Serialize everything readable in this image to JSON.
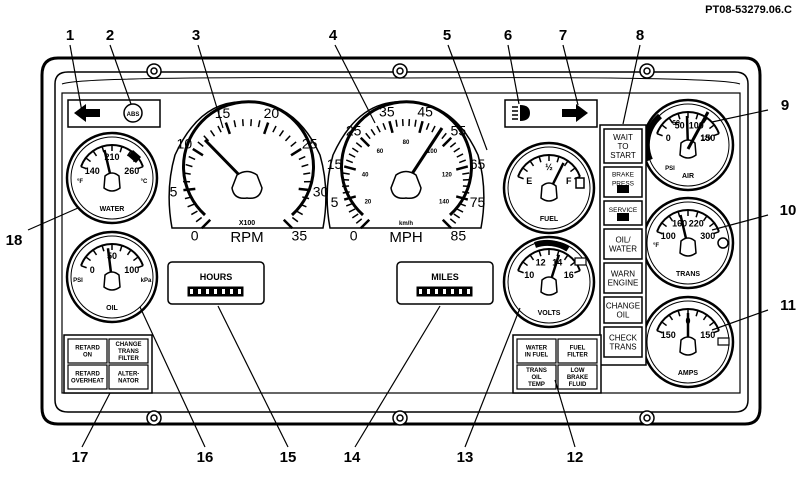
{
  "doc_id": "PT08-53279.06.C",
  "callouts": [
    "1",
    "2",
    "3",
    "4",
    "5",
    "6",
    "7",
    "8",
    "9",
    "10",
    "11",
    "12",
    "13",
    "14",
    "15",
    "16",
    "17",
    "18"
  ],
  "icons": {
    "left_turn": "arrow-left",
    "right_turn": "arrow-right",
    "high_beam": "headlamp"
  },
  "abs": "ABS",
  "tach": {
    "ticks": [
      "0",
      "5",
      "10",
      "15",
      "20",
      "25",
      "30",
      "35"
    ],
    "mult": "X100",
    "unit": "RPM"
  },
  "speedo": {
    "ticks": [
      "0",
      "5",
      "15",
      "25",
      "35",
      "45",
      "55",
      "65",
      "75",
      "85"
    ],
    "inner": [
      "20",
      "40",
      "60",
      "80",
      "100",
      "120",
      "140"
    ],
    "mult": "km/h",
    "unit": "MPH"
  },
  "water": {
    "ticks": [
      "140",
      "210",
      "260"
    ],
    "unit_left": "°F",
    "unit_right": "°C",
    "label": "WATER"
  },
  "oil": {
    "ticks": [
      "0",
      "50",
      "100"
    ],
    "unit_left": "PSI",
    "unit_right": "kPa",
    "label": "OIL"
  },
  "fuel": {
    "ticks": [
      "E",
      "½",
      "F"
    ],
    "label": "FUEL"
  },
  "volts": {
    "ticks": [
      "10",
      "12",
      "14",
      "16"
    ],
    "label": "VOLTS"
  },
  "air": {
    "ticks": [
      "0",
      "50",
      "100",
      "150",
      "60",
      "120"
    ],
    "unit": "PSI",
    "label": "AIR"
  },
  "trans": {
    "ticks": [
      "100",
      "160",
      "220",
      "300"
    ],
    "unit": "°F",
    "label": "TRANS"
  },
  "amps": {
    "ticks": [
      "150",
      "0",
      "150"
    ],
    "label": "AMPS"
  },
  "hours": {
    "label": "HOURS"
  },
  "miles": {
    "label": "MILES"
  },
  "warn_stack": [
    [
      "WAIT",
      "TO",
      "START"
    ],
    [
      "BRAKE",
      "PRESS"
    ],
    [
      "SERVICE"
    ],
    [
      "OIL/",
      "WATER"
    ],
    [
      "WARN",
      "ENGINE"
    ],
    [
      "CHANGE",
      "OIL"
    ],
    [
      "CHECK",
      "TRANS"
    ]
  ],
  "lights_left": [
    [
      "RETARD",
      "ON"
    ],
    [
      "CHANGE",
      "TRANS",
      "FILTER"
    ],
    [
      "RETARD",
      "OVERHEAT"
    ],
    [
      "ALTER-",
      "NATOR"
    ]
  ],
  "lights_right": [
    [
      "WATER",
      "IN FUEL"
    ],
    [
      "FUEL",
      "FILTER"
    ],
    [
      "TRANS",
      "OIL",
      "TEMP"
    ],
    [
      "LOW",
      "BRAKE",
      "FLUID"
    ]
  ]
}
